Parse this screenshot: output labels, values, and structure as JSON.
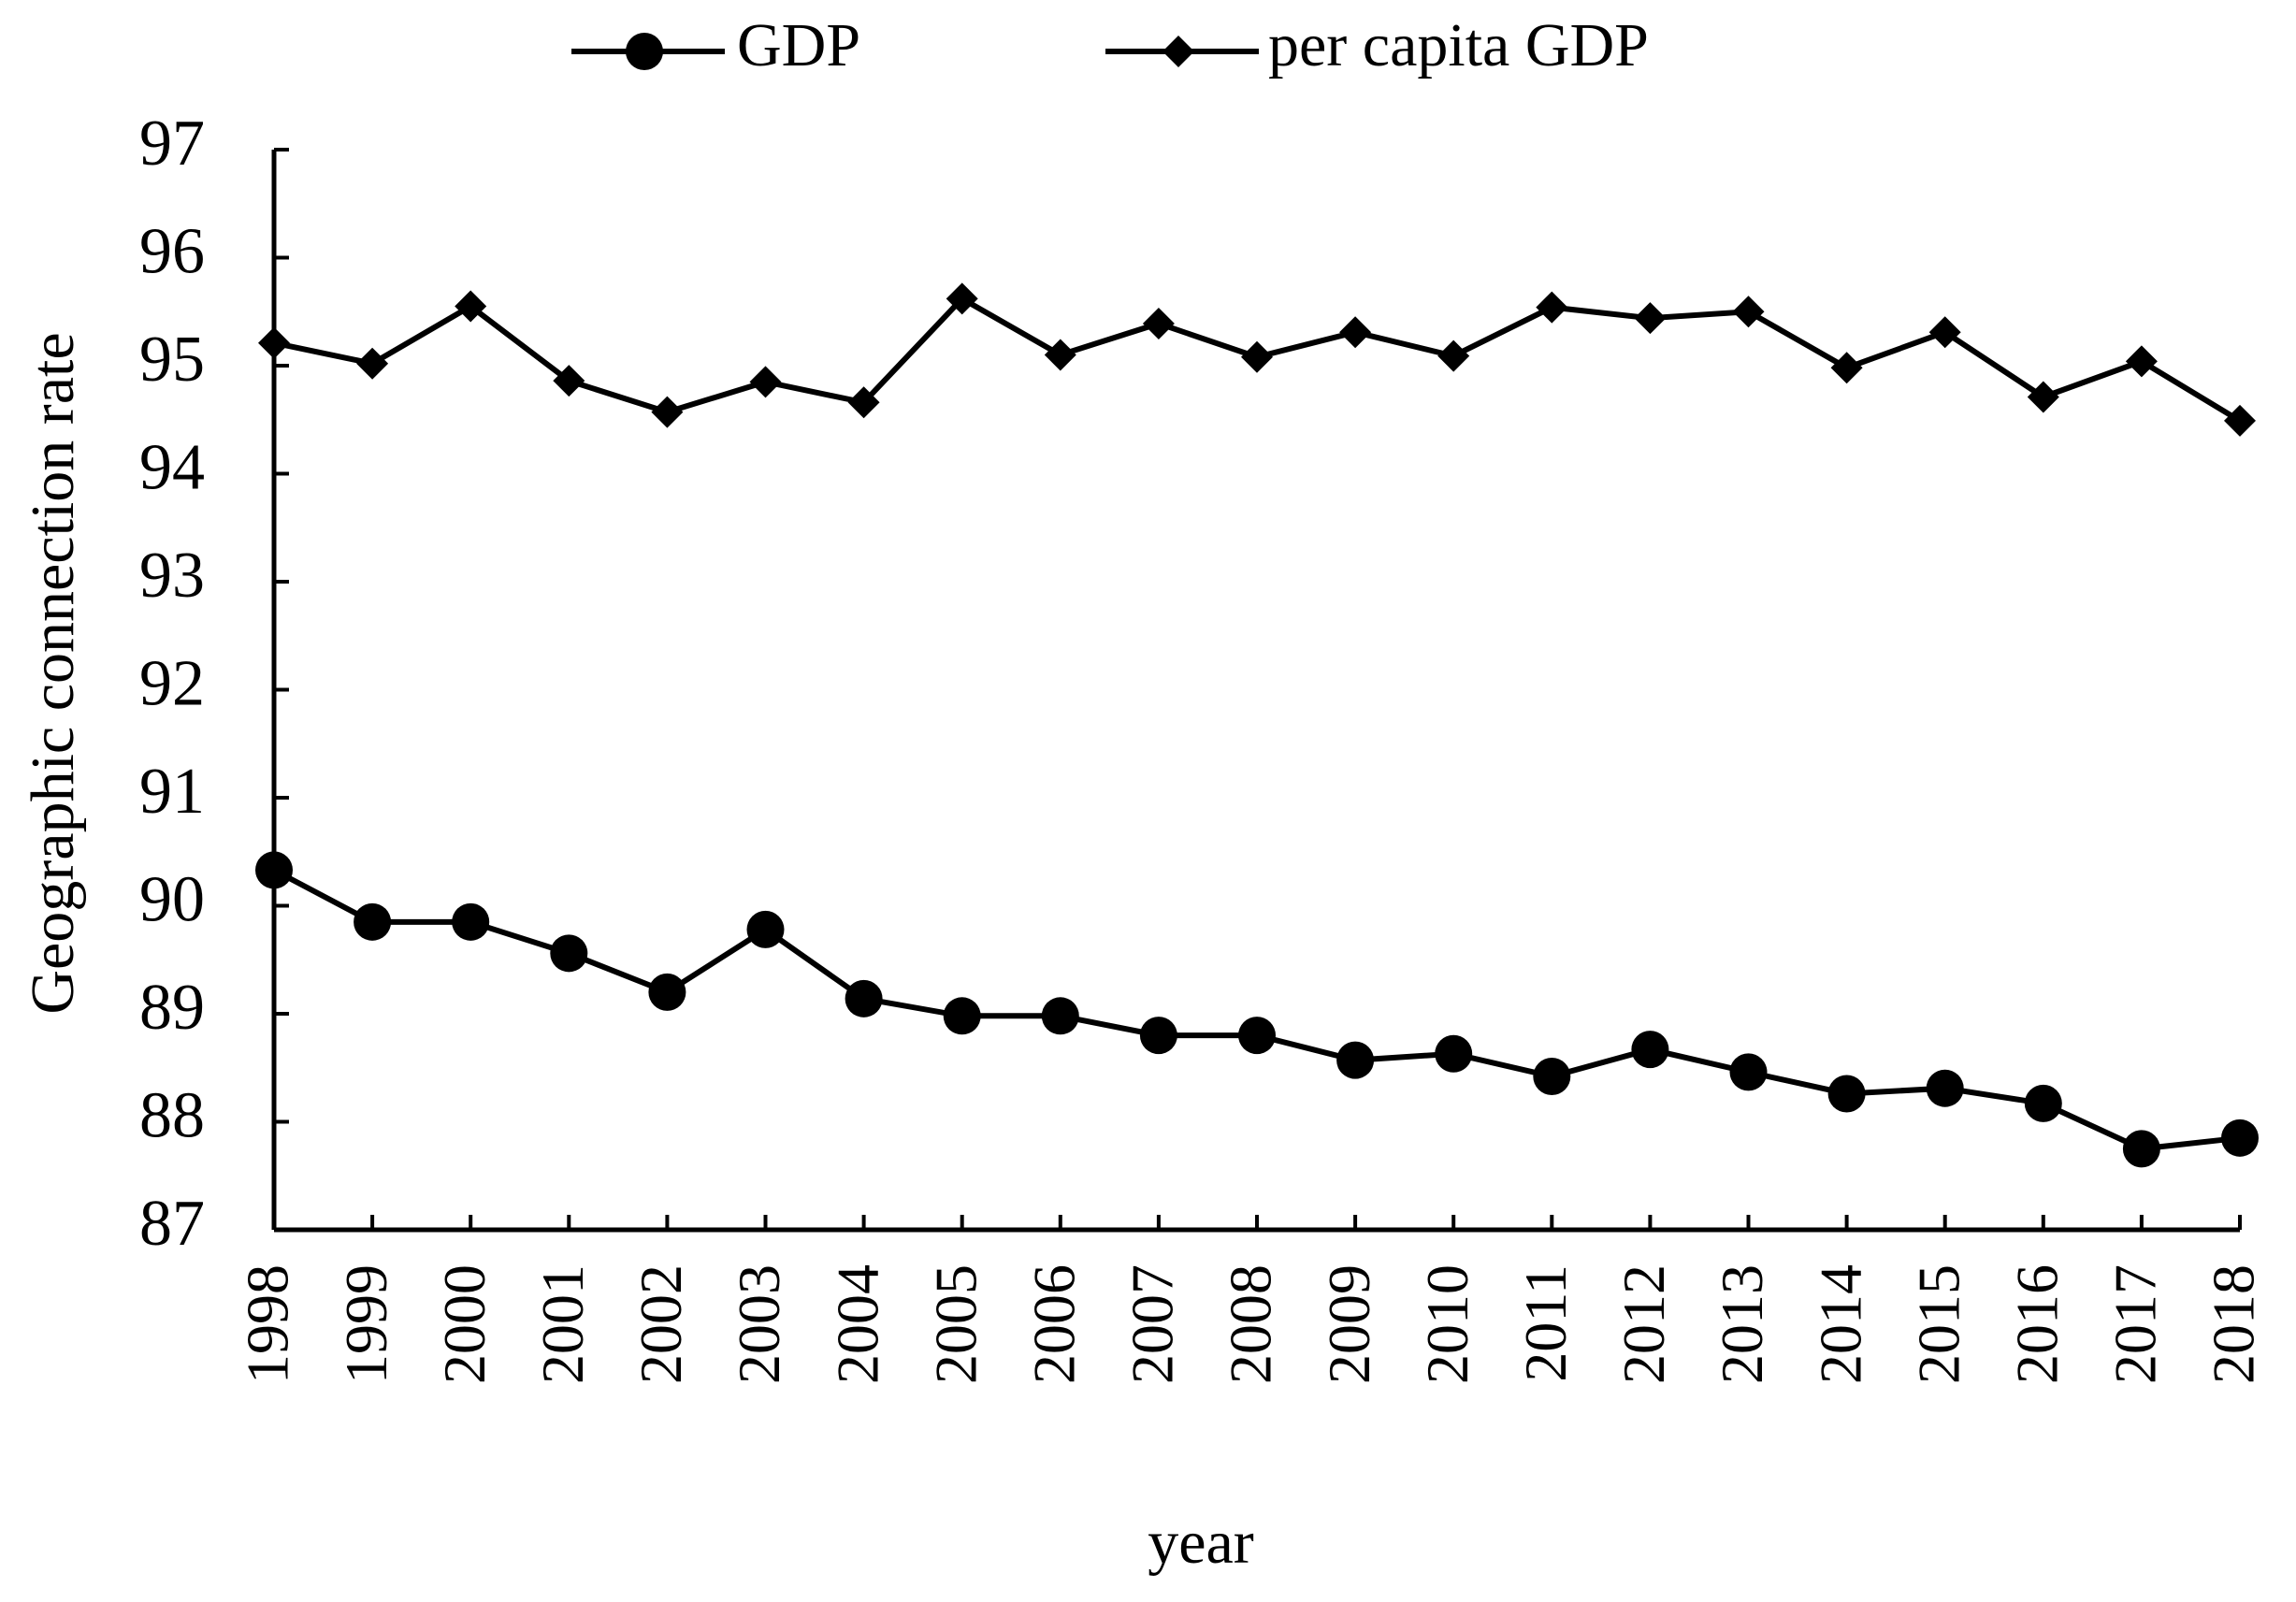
{
  "chart_data": {
    "type": "line",
    "x_label": "year",
    "y_label": "Geographic connection rate",
    "categories": [
      "1998",
      "1999",
      "2000",
      "2001",
      "2002",
      "2003",
      "2004",
      "2005",
      "2006",
      "2007",
      "2008",
      "2009",
      "2010",
      "2011",
      "2012",
      "2013",
      "2014",
      "2015",
      "2016",
      "2017",
      "2018"
    ],
    "series": [
      {
        "name": "GDP",
        "color": "#000000",
        "marker": "circle",
        "values": [
          90.33,
          89.85,
          89.85,
          89.56,
          89.2,
          89.78,
          89.14,
          88.98,
          88.98,
          88.8,
          88.8,
          88.57,
          88.63,
          88.42,
          88.67,
          88.46,
          88.26,
          88.31,
          88.17,
          87.75,
          87.85
        ]
      },
      {
        "name": "per capita GDP",
        "color": "#000000",
        "marker": "diamond",
        "values": [
          95.21,
          95.02,
          95.55,
          94.86,
          94.57,
          94.85,
          94.66,
          95.62,
          95.1,
          95.39,
          95.08,
          95.31,
          95.09,
          95.54,
          95.44,
          95.5,
          94.98,
          95.31,
          94.71,
          95.04,
          94.49
        ]
      }
    ],
    "ylim": [
      87,
      97
    ],
    "yticks": [
      87,
      88,
      89,
      90,
      91,
      92,
      93,
      94,
      95,
      96,
      97
    ],
    "grid": false,
    "legend": "top"
  }
}
